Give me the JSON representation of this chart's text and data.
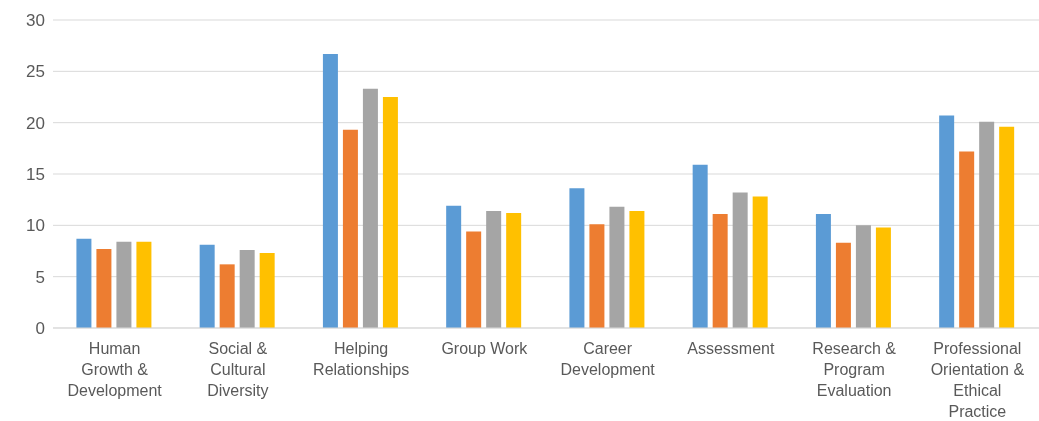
{
  "chart_data": {
    "type": "bar",
    "categories": [
      "Human Growth & Development",
      "Social & Cultural Diversity",
      "Helping Relationships",
      "Group Work",
      "Career Development",
      "Assessment",
      "Research & Program Evaluation",
      "Professional Orientation & Ethical Practice"
    ],
    "series": [
      {
        "color": "#5b9bd5",
        "values": [
          8.7,
          8.1,
          26.7,
          11.9,
          13.6,
          15.9,
          11.1,
          20.7
        ]
      },
      {
        "color": "#ed7d31",
        "values": [
          7.7,
          6.2,
          19.3,
          9.4,
          10.1,
          11.1,
          8.3,
          17.2
        ]
      },
      {
        "color": "#a5a5a5",
        "values": [
          8.4,
          7.6,
          23.3,
          11.4,
          11.8,
          13.2,
          10.0,
          20.1
        ]
      },
      {
        "color": "#ffc000",
        "values": [
          8.4,
          7.3,
          22.5,
          11.2,
          11.4,
          12.8,
          9.8,
          19.6
        ]
      }
    ],
    "ylim": [
      0,
      30
    ],
    "yticks": [
      0,
      5,
      10,
      15,
      20,
      25,
      30
    ],
    "grid": "y",
    "legend": false
  }
}
